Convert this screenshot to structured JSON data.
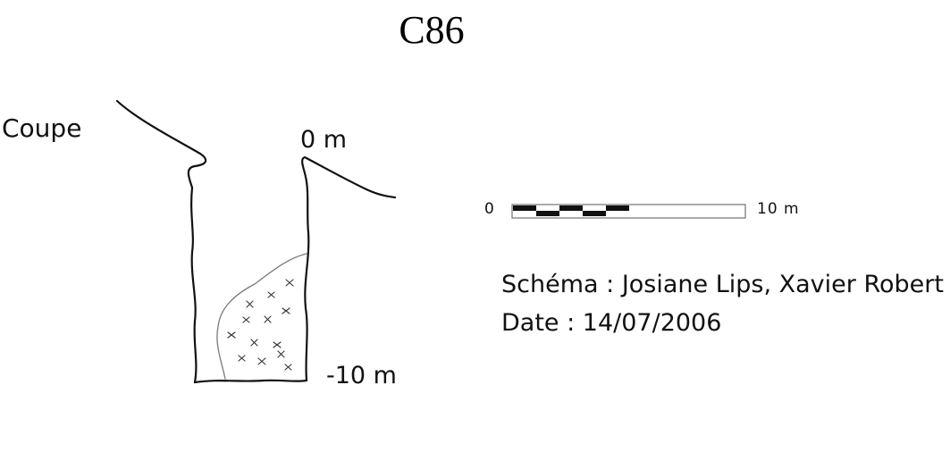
{
  "title": "C86",
  "section_label": "Coupe",
  "depth_labels": {
    "top": "0 m",
    "bottom": "-10 m"
  },
  "scale_bar": {
    "min_label": "0",
    "max_label": "10 m"
  },
  "credits": {
    "schema": "Schéma : Josiane Lips, Xavier Robert",
    "date": "Date : 14/07/2006"
  },
  "colors": {
    "ink": "#111111",
    "fill_line": "#7a7a7a"
  }
}
